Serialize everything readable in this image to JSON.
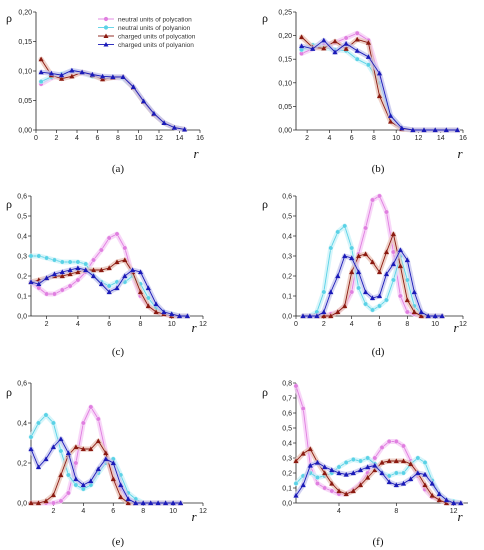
{
  "legend": [
    {
      "name": "neutral units of polycation",
      "color": "#e07fe0",
      "halo": "#f6c9f6",
      "marker": "circle"
    },
    {
      "name": "neutral units of polyanion",
      "color": "#5ad2e6",
      "halo": "#c8f1f8",
      "marker": "circle"
    },
    {
      "name": "charged units of polycation",
      "color": "#8b1a10",
      "halo": "#e8c2b6",
      "marker": "triangle"
    },
    {
      "name": "charged units of polyanion",
      "color": "#1a1ab8",
      "halo": "#c4c4ee",
      "marker": "triangle"
    }
  ],
  "chart_data": [
    {
      "type": "line",
      "label": "(a)",
      "ylabel": "ρ",
      "xlabel": "r",
      "xlim": [
        0,
        16
      ],
      "xticks": [
        0,
        2,
        4,
        6,
        8,
        10,
        12,
        14,
        16
      ],
      "ylim": [
        0,
        0.2
      ],
      "yticks": [
        0.0,
        0.05,
        0.1,
        0.15,
        0.2
      ],
      "ytick_labels": [
        "0,00",
        "0,05",
        "0,10",
        "0,15",
        "0,20"
      ],
      "x": [
        0.5,
        1.5,
        2.5,
        3.5,
        4.5,
        5.5,
        6.5,
        7.5,
        8.5,
        9.5,
        10.5,
        11.5,
        12.5,
        13.5,
        14.5
      ],
      "series": [
        {
          "values": [
            0.078,
            0.088,
            0.093,
            0.098,
            0.096,
            0.092,
            0.089,
            0.089,
            0.088,
            0.072,
            0.048,
            0.027,
            0.012,
            0.004,
            0.001
          ]
        },
        {
          "values": [
            0.082,
            0.09,
            0.095,
            0.1,
            0.097,
            0.091,
            0.089,
            0.09,
            0.088,
            0.072,
            0.048,
            0.027,
            0.012,
            0.004,
            0.001
          ]
        },
        {
          "values": [
            0.12,
            0.093,
            0.087,
            0.091,
            0.098,
            0.093,
            0.086,
            0.089,
            0.09,
            0.072,
            0.048,
            0.027,
            0.012,
            0.004,
            0.001
          ]
        },
        {
          "values": [
            0.098,
            0.096,
            0.093,
            0.101,
            0.098,
            0.094,
            0.091,
            0.09,
            0.09,
            0.073,
            0.049,
            0.028,
            0.012,
            0.004,
            0.001
          ]
        }
      ]
    },
    {
      "type": "line",
      "label": "(b)",
      "ylabel": "ρ",
      "xlabel": "r",
      "xlim": [
        1,
        16
      ],
      "xticks": [
        2,
        4,
        6,
        8,
        10,
        12,
        14,
        16
      ],
      "ylim": [
        0,
        0.25
      ],
      "yticks": [
        0.0,
        0.05,
        0.1,
        0.15,
        0.2,
        0.25
      ],
      "ytick_labels": [
        "0,00",
        "0,05",
        "0,10",
        "0,15",
        "0,20",
        "0,25"
      ],
      "x": [
        1.5,
        2.5,
        3.5,
        4.5,
        5.5,
        6.5,
        7.5,
        8.5,
        9.5,
        10.5,
        11.5,
        12.5,
        13.5,
        14.5,
        15.5
      ],
      "series": [
        {
          "values": [
            0.162,
            0.172,
            0.18,
            0.185,
            0.195,
            0.205,
            0.19,
            0.11,
            0.03,
            0.004,
            0.0,
            0.0,
            0.0,
            0.0,
            0.0
          ]
        },
        {
          "values": [
            0.17,
            0.18,
            0.175,
            0.17,
            0.168,
            0.15,
            0.138,
            0.1,
            0.03,
            0.004,
            0.0,
            0.0,
            0.0,
            0.0,
            0.0
          ]
        },
        {
          "values": [
            0.197,
            0.175,
            0.173,
            0.188,
            0.172,
            0.192,
            0.185,
            0.072,
            0.018,
            0.002,
            0.0,
            0.0,
            0.0,
            0.0,
            0.0
          ]
        },
        {
          "values": [
            0.178,
            0.172,
            0.19,
            0.165,
            0.183,
            0.168,
            0.155,
            0.12,
            0.03,
            0.004,
            0.0,
            0.0,
            0.0,
            0.0,
            0.0
          ]
        }
      ]
    },
    {
      "type": "line",
      "label": "(c)",
      "ylabel": "ρ",
      "xlabel": "r",
      "xlim": [
        1,
        12
      ],
      "xticks": [
        2,
        4,
        6,
        8,
        10,
        12
      ],
      "ylim": [
        0,
        0.6
      ],
      "yticks": [
        0.0,
        0.1,
        0.2,
        0.3,
        0.4,
        0.5,
        0.6
      ],
      "ytick_labels": [
        "0,0",
        "0,1",
        "0,2",
        "0,3",
        "0,4",
        "0,5",
        "0,6"
      ],
      "x": [
        1.0,
        1.5,
        2.0,
        2.5,
        3.0,
        3.5,
        4.0,
        4.5,
        5.0,
        5.5,
        6.0,
        6.5,
        7.0,
        7.5,
        8.0,
        8.5,
        9.0,
        9.5,
        10.0,
        10.5,
        11.0
      ],
      "series": [
        {
          "values": [
            0.17,
            0.14,
            0.11,
            0.11,
            0.13,
            0.15,
            0.18,
            0.22,
            0.28,
            0.33,
            0.39,
            0.41,
            0.34,
            0.2,
            0.1,
            0.05,
            0.02,
            0.01,
            0.0,
            0.0,
            0.0
          ]
        },
        {
          "values": [
            0.3,
            0.3,
            0.29,
            0.28,
            0.27,
            0.27,
            0.27,
            0.26,
            0.2,
            0.17,
            0.15,
            0.17,
            0.17,
            0.2,
            0.16,
            0.09,
            0.04,
            0.02,
            0.01,
            0.0,
            0.0
          ]
        },
        {
          "values": [
            0.17,
            0.18,
            0.19,
            0.2,
            0.2,
            0.21,
            0.22,
            0.23,
            0.23,
            0.23,
            0.24,
            0.27,
            0.28,
            0.22,
            0.12,
            0.05,
            0.02,
            0.01,
            0.0,
            0.0,
            0.0
          ]
        },
        {
          "values": [
            0.17,
            0.16,
            0.19,
            0.21,
            0.22,
            0.23,
            0.24,
            0.23,
            0.2,
            0.16,
            0.12,
            0.14,
            0.2,
            0.23,
            0.22,
            0.14,
            0.06,
            0.02,
            0.01,
            0.0,
            0.0
          ]
        }
      ]
    },
    {
      "type": "line",
      "label": "(d)",
      "ylabel": "ρ",
      "xlabel": "r",
      "xlim": [
        0,
        12
      ],
      "xticks": [
        0,
        2,
        4,
        6,
        8,
        10,
        12
      ],
      "ylim": [
        0,
        0.6
      ],
      "yticks": [
        0.0,
        0.1,
        0.2,
        0.3,
        0.4,
        0.5,
        0.6
      ],
      "ytick_labels": [
        "0,0",
        "0,1",
        "0,2",
        "0,3",
        "0,4",
        "0,5",
        "0,6"
      ],
      "x": [
        0.5,
        1.0,
        1.5,
        2.0,
        2.5,
        3.0,
        3.5,
        4.0,
        4.5,
        5.0,
        5.5,
        6.0,
        6.5,
        7.0,
        7.5,
        8.0,
        8.5,
        9.0,
        9.5,
        10.0,
        10.5
      ],
      "series": [
        {
          "values": [
            0.0,
            0.0,
            0.0,
            0.0,
            0.01,
            0.02,
            0.05,
            0.12,
            0.31,
            0.44,
            0.58,
            0.6,
            0.52,
            0.32,
            0.1,
            0.02,
            0.01,
            0.0,
            0.0,
            0.0,
            0.0
          ]
        },
        {
          "values": [
            0.0,
            0.0,
            0.02,
            0.12,
            0.34,
            0.42,
            0.45,
            0.34,
            0.14,
            0.06,
            0.03,
            0.05,
            0.08,
            0.18,
            0.3,
            0.18,
            0.05,
            0.01,
            0.0,
            0.0,
            0.0
          ]
        },
        {
          "values": [
            0.0,
            0.0,
            0.0,
            0.0,
            0.0,
            0.02,
            0.05,
            0.22,
            0.3,
            0.31,
            0.27,
            0.22,
            0.32,
            0.41,
            0.25,
            0.08,
            0.02,
            0.0,
            0.0,
            0.0,
            0.0
          ]
        },
        {
          "values": [
            0.0,
            0.0,
            0.0,
            0.02,
            0.12,
            0.2,
            0.3,
            0.29,
            0.22,
            0.12,
            0.09,
            0.1,
            0.21,
            0.26,
            0.33,
            0.28,
            0.12,
            0.02,
            0.0,
            0.0,
            0.0
          ]
        }
      ]
    },
    {
      "type": "line",
      "label": "(e)",
      "ylabel": "ρ",
      "xlabel": "r",
      "xlim": [
        0.5,
        12
      ],
      "xticks": [
        2,
        4,
        6,
        8,
        10,
        12
      ],
      "ylim": [
        0,
        0.6
      ],
      "yticks": [
        0.0,
        0.2,
        0.4,
        0.6
      ],
      "ytick_labels": [
        "0,0",
        "0,2",
        "0,4",
        "0,6"
      ],
      "x": [
        0.5,
        1.0,
        1.5,
        2.0,
        2.5,
        3.0,
        3.5,
        4.0,
        4.5,
        5.0,
        5.5,
        6.0,
        6.5,
        7.0,
        7.5,
        8.0,
        8.5,
        9.0,
        9.5,
        10.0,
        10.5
      ],
      "series": [
        {
          "values": [
            0.0,
            0.0,
            0.0,
            0.0,
            0.01,
            0.05,
            0.2,
            0.4,
            0.48,
            0.42,
            0.25,
            0.12,
            0.07,
            0.02,
            0.0,
            0.0,
            0.0,
            0.0,
            0.0,
            0.0,
            0.0
          ]
        },
        {
          "values": [
            0.33,
            0.4,
            0.44,
            0.4,
            0.26,
            0.14,
            0.09,
            0.07,
            0.09,
            0.15,
            0.2,
            0.22,
            0.14,
            0.05,
            0.02,
            0.0,
            0.0,
            0.0,
            0.0,
            0.0,
            0.0
          ]
        },
        {
          "values": [
            0.0,
            0.0,
            0.01,
            0.04,
            0.14,
            0.24,
            0.28,
            0.27,
            0.27,
            0.31,
            0.25,
            0.12,
            0.03,
            0.0,
            0.0,
            0.0,
            0.0,
            0.0,
            0.0,
            0.0,
            0.0
          ]
        },
        {
          "values": [
            0.27,
            0.18,
            0.22,
            0.28,
            0.32,
            0.25,
            0.12,
            0.09,
            0.11,
            0.17,
            0.22,
            0.2,
            0.09,
            0.02,
            0.0,
            0.0,
            0.0,
            0.0,
            0.0,
            0.0,
            0.0
          ]
        }
      ]
    },
    {
      "type": "line",
      "label": "(f)",
      "ylabel": "ρ",
      "xlabel": "r",
      "xlim": [
        1,
        13
      ],
      "xticks": [
        4,
        8,
        12
      ],
      "ylim": [
        0,
        0.8
      ],
      "yticks": [
        0.0,
        0.1,
        0.2,
        0.3,
        0.4,
        0.5,
        0.6,
        0.7,
        0.8
      ],
      "ytick_labels": [
        "0,0",
        "0,1",
        "0,2",
        "0,3",
        "0,4",
        "0,5",
        "0,6",
        "0,7",
        "0,8"
      ],
      "x": [
        1.0,
        1.5,
        2.0,
        2.5,
        3.0,
        3.5,
        4.0,
        4.5,
        5.0,
        5.5,
        6.0,
        6.5,
        7.0,
        7.5,
        8.0,
        8.5,
        9.0,
        9.5,
        10.0,
        10.5,
        11.0,
        11.5,
        12.0,
        12.5
      ],
      "series": [
        {
          "values": [
            0.78,
            0.63,
            0.25,
            0.13,
            0.1,
            0.08,
            0.06,
            0.06,
            0.09,
            0.13,
            0.2,
            0.3,
            0.37,
            0.41,
            0.41,
            0.38,
            0.28,
            0.18,
            0.09,
            0.04,
            0.02,
            0.01,
            0.0,
            0.0
          ]
        },
        {
          "values": [
            0.13,
            0.18,
            0.2,
            0.17,
            0.18,
            0.2,
            0.24,
            0.27,
            0.29,
            0.28,
            0.3,
            0.26,
            0.2,
            0.18,
            0.2,
            0.2,
            0.26,
            0.3,
            0.27,
            0.15,
            0.06,
            0.02,
            0.01,
            0.0
          ]
        },
        {
          "values": [
            0.28,
            0.33,
            0.36,
            0.27,
            0.2,
            0.13,
            0.08,
            0.06,
            0.08,
            0.12,
            0.17,
            0.22,
            0.27,
            0.28,
            0.28,
            0.28,
            0.26,
            0.2,
            0.12,
            0.05,
            0.02,
            0.0,
            0.0,
            0.0
          ]
        },
        {
          "values": [
            0.05,
            0.12,
            0.25,
            0.27,
            0.24,
            0.22,
            0.2,
            0.19,
            0.2,
            0.22,
            0.24,
            0.25,
            0.2,
            0.14,
            0.12,
            0.13,
            0.16,
            0.2,
            0.19,
            0.13,
            0.06,
            0.02,
            0.0,
            0.0
          ]
        }
      ]
    }
  ]
}
